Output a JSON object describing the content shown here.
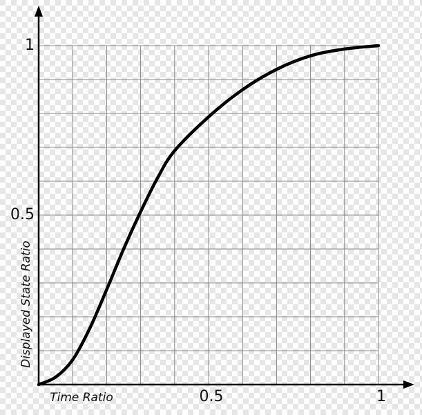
{
  "chart_data": {
    "type": "line",
    "x_label": "Time Ratio",
    "y_label": "Displayed State Ratio",
    "x": [
      0,
      0.05,
      0.1,
      0.15,
      0.2,
      0.25,
      0.3,
      0.35,
      0.4,
      0.5,
      0.6,
      0.7,
      0.8,
      0.9,
      1
    ],
    "series": [
      {
        "color": "#000000",
        "values": [
          0,
          0.022,
          0.073,
          0.165,
          0.28,
          0.4,
          0.51,
          0.61,
          0.69,
          0.79,
          0.87,
          0.93,
          0.97,
          0.99,
          1
        ]
      }
    ],
    "xlim": [
      0,
      1
    ],
    "ylim": [
      0,
      1
    ],
    "xticks": [
      0.5,
      1
    ],
    "yticks": [
      0.5,
      1
    ],
    "xgrid": [
      0.1,
      0.2,
      0.3,
      0.4,
      0.5,
      0.6,
      0.7,
      0.8,
      0.9,
      1
    ],
    "ygrid": [
      0.1,
      0.2,
      0.3,
      0.4,
      0.5,
      0.6,
      0.7,
      0.8,
      0.9,
      1
    ],
    "grid": true
  }
}
